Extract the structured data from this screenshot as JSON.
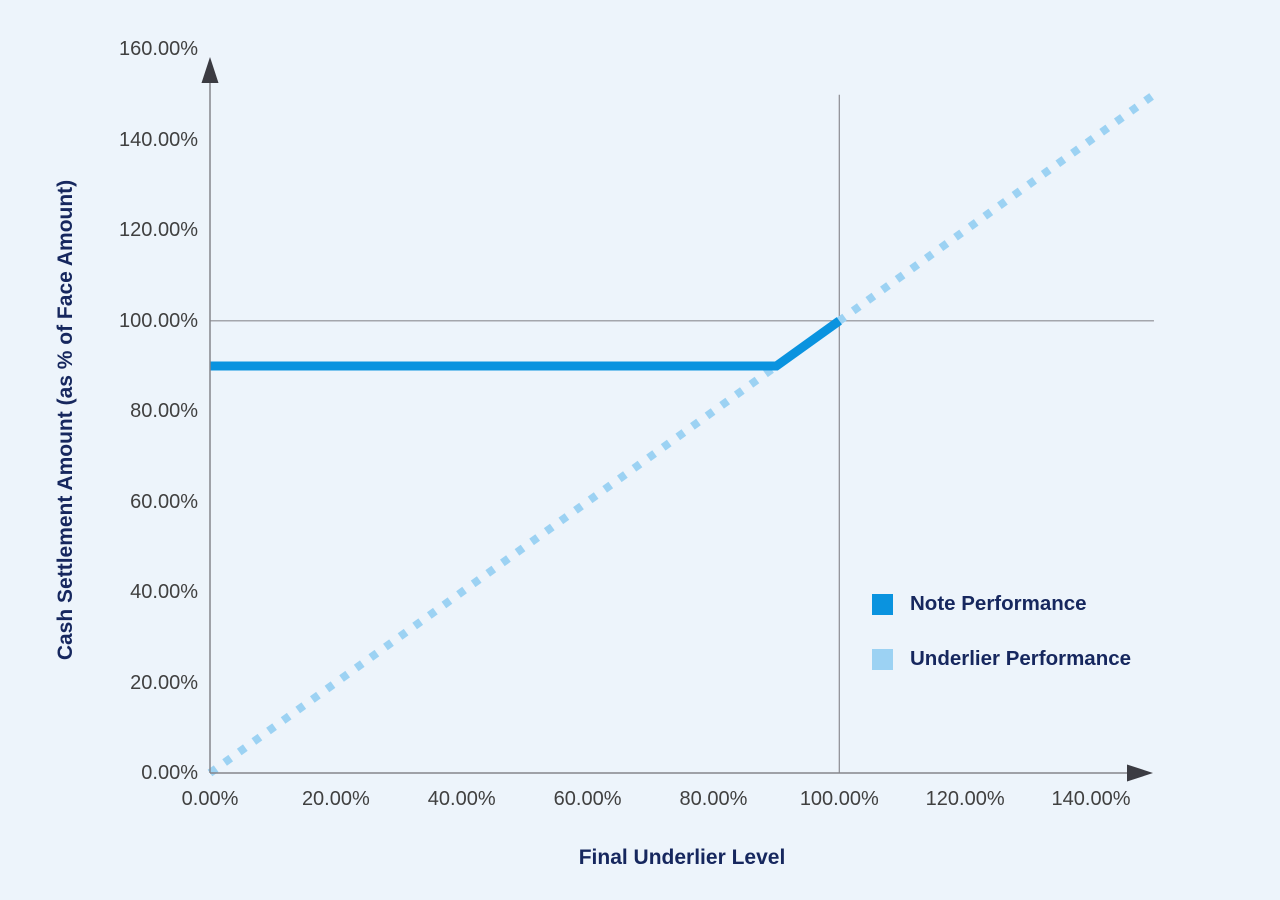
{
  "colors": {
    "background": "#EDF4FB",
    "note_line": "#0A93DF",
    "underlier_line": "#9CD2F3",
    "axis_line": "#85858B",
    "axis_arrow": "#3B3B42",
    "reference_line": "#8B8B91",
    "tick_text": "#404040",
    "title_text": "#16275E"
  },
  "chart_data": {
    "type": "line",
    "title": "",
    "xlabel": "Final Underlier Level",
    "ylabel": "Cash Settlement Amount (as % of Face Amount)",
    "xlim": [
      0,
      150
    ],
    "ylim": [
      0,
      160
    ],
    "x_ticks": [
      "0.00%",
      "20.00%",
      "40.00%",
      "60.00%",
      "80.00%",
      "100.00%",
      "120.00%",
      "140.00%"
    ],
    "y_ticks": [
      "0.00%",
      "20.00%",
      "40.00%",
      "60.00%",
      "80.00%",
      "100.00%",
      "120.00%",
      "140.00%",
      "160.00%"
    ],
    "grid": "off",
    "reference_lines": {
      "horizontal_at_y": 100,
      "horizontal_x_span": [
        0,
        150
      ],
      "vertical_at_x": 100,
      "vertical_y_span": [
        0,
        150
      ]
    },
    "series": [
      {
        "name": "Underlier Performance",
        "style": "dotted",
        "color": "#9CD2F3",
        "points": [
          [
            0,
            0
          ],
          [
            150,
            150
          ]
        ]
      },
      {
        "name": "Note Performance",
        "style": "solid",
        "color": "#0A93DF",
        "points": [
          [
            0,
            90
          ],
          [
            90,
            90
          ],
          [
            100,
            100
          ]
        ]
      }
    ],
    "legend": {
      "position": "right-middle",
      "entries": [
        {
          "label": "Note Performance",
          "color": "#0A93DF"
        },
        {
          "label": "Underlier Performance",
          "color": "#9CD2F3"
        }
      ]
    }
  }
}
